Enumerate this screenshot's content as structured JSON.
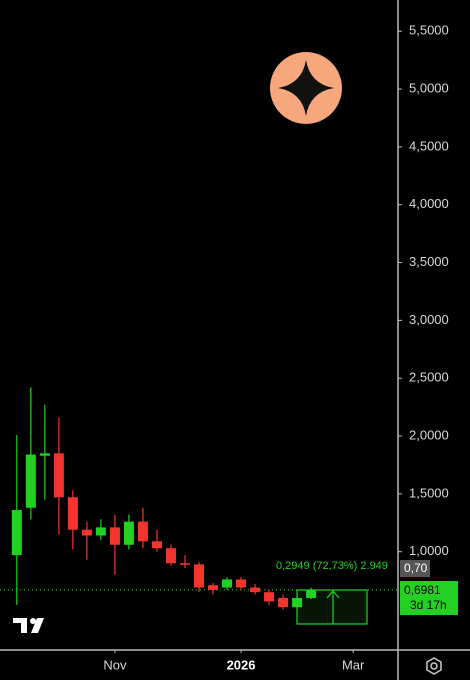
{
  "chart_data": {
    "type": "candlestick",
    "x": [
      0,
      1,
      2,
      3,
      4,
      5,
      6,
      7,
      8,
      9,
      10,
      11,
      12,
      13,
      14,
      15,
      16,
      17,
      18,
      19,
      20,
      21
    ],
    "open": [
      0.97,
      1.38,
      1.83,
      1.85,
      1.47,
      1.19,
      1.14,
      1.21,
      1.06,
      1.26,
      1.09,
      1.03,
      0.9,
      0.89,
      0.71,
      0.69,
      0.76,
      0.69,
      0.65,
      0.6,
      0.52,
      0.6
    ],
    "high": [
      2.01,
      2.42,
      2.27,
      2.16,
      1.53,
      1.26,
      1.28,
      1.32,
      1.32,
      1.38,
      1.19,
      1.06,
      0.97,
      0.91,
      0.73,
      0.78,
      0.78,
      0.72,
      0.67,
      0.63,
      0.63,
      0.69
    ],
    "low": [
      0.54,
      1.28,
      1.45,
      1.15,
      1.02,
      0.93,
      1.1,
      0.8,
      1.02,
      1.03,
      1.0,
      0.88,
      0.86,
      0.65,
      0.63,
      0.67,
      0.67,
      0.63,
      0.54,
      0.5,
      0.5,
      0.59
    ],
    "close": [
      1.36,
      1.84,
      1.85,
      1.47,
      1.19,
      1.14,
      1.21,
      1.06,
      1.26,
      1.09,
      1.03,
      0.9,
      0.89,
      0.69,
      0.67,
      0.76,
      0.69,
      0.65,
      0.57,
      0.52,
      0.6,
      0.67
    ],
    "up_color": "#22d122",
    "down_color": "#f2362f",
    "xlim": [
      -1.2,
      27.2
    ],
    "xticks": [
      {
        "value": 7,
        "label": "Nov"
      },
      {
        "value": 16,
        "label": "2026"
      },
      {
        "value": 24,
        "label": "Mar"
      }
    ],
    "ylim": [
      0.15,
      5.77
    ],
    "yticks": [
      {
        "value": 1.0,
        "label": "1,0000"
      },
      {
        "value": 1.5,
        "label": "1,5000"
      },
      {
        "value": 2.0,
        "label": "2,0000"
      },
      {
        "value": 2.5,
        "label": "2,5000"
      },
      {
        "value": 3.0,
        "label": "3,0000"
      },
      {
        "value": 3.5,
        "label": "3,5000"
      },
      {
        "value": 4.0,
        "label": "4,0000"
      },
      {
        "value": 4.5,
        "label": "4,5000"
      },
      {
        "value": 5.0,
        "label": "5,0000"
      },
      {
        "value": 5.5,
        "label": "5,5000"
      }
    ],
    "annotation": "0,2949 (72,73%) 2.949",
    "price_tags": [
      "0,70",
      "0,6981",
      "3d 17h"
    ]
  }
}
